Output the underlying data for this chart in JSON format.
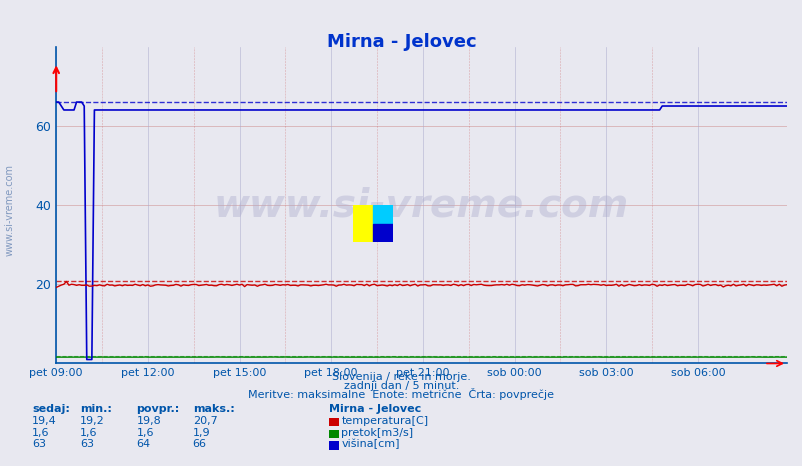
{
  "title": "Mirna - Jelovec",
  "bg_color": "#e8e8f0",
  "plot_bg_color": "#e8e8f0",
  "x_labels": [
    "pet 09:00",
    "pet 12:00",
    "pet 15:00",
    "pet 18:00",
    "pet 21:00",
    "sob 00:00",
    "sob 03:00",
    "sob 06:00"
  ],
  "x_ticks_pos": [
    0,
    36,
    72,
    108,
    144,
    180,
    216,
    252
  ],
  "total_points": 288,
  "ylim": [
    0,
    80
  ],
  "yticks": [
    0,
    20,
    40,
    60
  ],
  "ylabel_color": "#0055aa",
  "grid_color_major": "#cc8888",
  "grid_color_minor": "#aaaacc",
  "temp_color": "#cc0000",
  "temp_max_color": "#cc0000",
  "flow_color": "#008800",
  "flow_max_color": "#008800",
  "height_color": "#0000cc",
  "height_max_color": "#0000cc",
  "temp_avg": 19.8,
  "flow_avg": 1.6,
  "height_avg": 64,
  "temp_max": 20.7,
  "flow_max": 1.9,
  "height_max": 66,
  "temp_min": 19.2,
  "flow_min": 1.6,
  "height_min": 63,
  "temp_now": 19.4,
  "flow_now": 1.6,
  "height_now": 63,
  "watermark": "www.si-vreme.com",
  "subtitle1": "Slovenija / reke in morje.",
  "subtitle2": "zadnji dan / 5 minut.",
  "subtitle3": "Meritve: maksimalne  Enote: metrične  Črta: povprečje",
  "legend_title": "Mirna - Jelovec",
  "legend_items": [
    "temperatura[C]",
    "pretok[m3/s]",
    "višina[cm]"
  ],
  "table_headers": [
    "sedaj:",
    "min.:",
    "povpr.:",
    "maks.:"
  ],
  "table_temp": [
    "19,4",
    "19,2",
    "19,8",
    "20,7"
  ],
  "table_flow": [
    "1,6",
    "1,6",
    "1,6",
    "1,9"
  ],
  "table_height": [
    "63",
    "63",
    "64",
    "66"
  ]
}
